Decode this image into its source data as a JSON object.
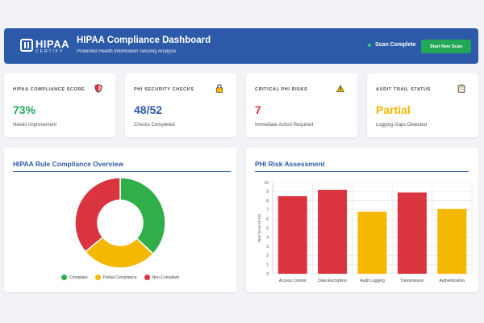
{
  "header": {
    "logo_text": "HIPAA",
    "logo_sub": "CERTIFY",
    "title": "HIPAA Compliance Dashboard",
    "subtitle": "Protected Health Information Security Analysis",
    "scan_status": "Scan Complete",
    "start_button": "Start New Scan"
  },
  "cards": [
    {
      "label": "HIPAA COMPLIANCE SCORE",
      "value": "73%",
      "desc": "Needs Improvement",
      "icon": "shield-icon",
      "color": "#22a958"
    },
    {
      "label": "PHI SECURITY CHECKS",
      "value": "48/52",
      "desc": "Checks Completed",
      "icon": "lock-icon",
      "color": "#2d5aa8"
    },
    {
      "label": "CRITICAL PHI RISKS",
      "value": "7",
      "desc": "Immediate Action Required",
      "icon": "warning-icon",
      "color": "#d9343f"
    },
    {
      "label": "AUDIT TRAIL STATUS",
      "value": "Partial",
      "desc": "Logging Gaps Detected",
      "icon": "clipboard-icon",
      "color": "#f5b800"
    }
  ],
  "donut": {
    "title": "HIPAA Rule Compliance Overview",
    "chart_data": {
      "type": "pie",
      "labels": [
        "Compliant",
        "Partial Compliance",
        "Non-Compliant"
      ],
      "values": [
        37,
        27,
        36
      ],
      "colors": [
        "#2fae4a",
        "#f5b800",
        "#d9343f"
      ]
    }
  },
  "bars": {
    "title": "PHI Risk Assessment",
    "chart_data": {
      "type": "bar",
      "categories": [
        "Access Control",
        "Data Encryption",
        "Audit Logging",
        "Transmission",
        "Authentication"
      ],
      "values": [
        8.5,
        9.2,
        6.8,
        8.9,
        7.1
      ],
      "colors": [
        "#d9343f",
        "#d9343f",
        "#f5b800",
        "#d9343f",
        "#f5b800"
      ],
      "ylabel": "Risk Score (0-10)",
      "yticks": [
        "0",
        "1",
        "2",
        "3",
        "4",
        "5",
        "6",
        "7",
        "8",
        "9",
        "10"
      ],
      "ylim": [
        0,
        10
      ]
    }
  }
}
